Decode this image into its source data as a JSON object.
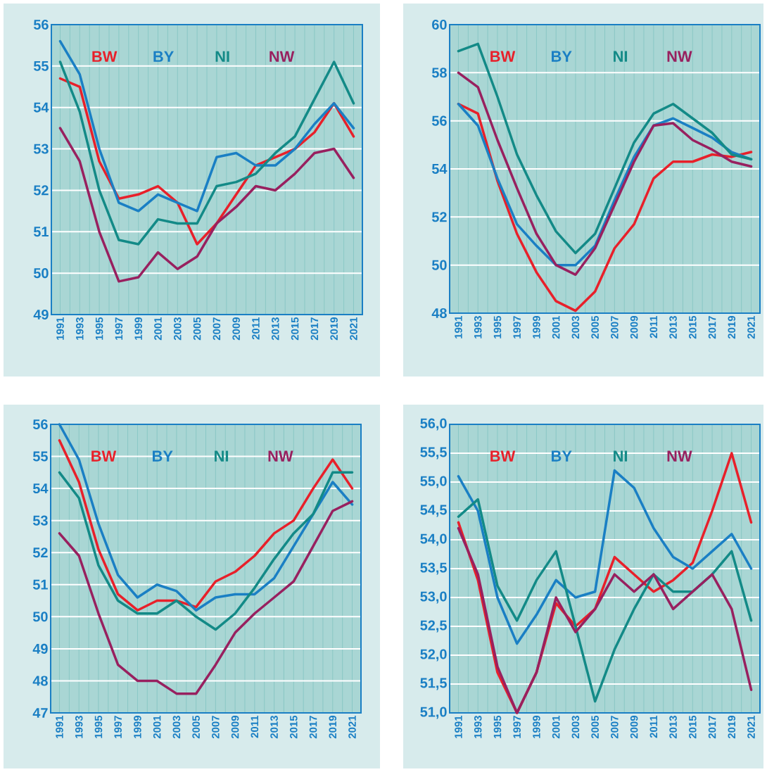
{
  "chart_data": [
    {
      "type": "line",
      "categories": [
        "1991",
        "1993",
        "1995",
        "1997",
        "1999",
        "2001",
        "2003",
        "2005",
        "2007",
        "2009",
        "2011",
        "2013",
        "2015",
        "2017",
        "2019",
        "2021"
      ],
      "ylim": [
        49,
        56
      ],
      "yticks": [
        49,
        50,
        51,
        52,
        53,
        54,
        55,
        56
      ],
      "grid": true,
      "series": [
        {
          "name": "BW",
          "color": "#e8202a",
          "values": [
            54.7,
            54.5,
            52.7,
            51.8,
            51.9,
            52.1,
            51.7,
            50.7,
            51.2,
            51.9,
            52.6,
            52.8,
            53.0,
            53.4,
            54.1,
            53.3
          ]
        },
        {
          "name": "BY",
          "color": "#1a7fc4",
          "values": [
            55.6,
            54.8,
            53.0,
            51.7,
            51.5,
            51.9,
            51.7,
            51.5,
            52.8,
            52.9,
            52.6,
            52.6,
            53.0,
            53.6,
            54.1,
            53.5
          ]
        },
        {
          "name": "NI",
          "color": "#138a87",
          "values": [
            55.1,
            53.9,
            52.0,
            50.8,
            50.7,
            51.3,
            51.2,
            51.2,
            52.1,
            52.2,
            52.4,
            52.9,
            53.3,
            54.2,
            55.1,
            54.1
          ]
        },
        {
          "name": "NW",
          "color": "#98205f",
          "values": [
            53.5,
            52.7,
            51.0,
            49.8,
            49.9,
            50.5,
            50.1,
            50.4,
            51.2,
            51.6,
            52.1,
            52.0,
            52.4,
            52.9,
            53.0,
            52.3
          ]
        }
      ]
    },
    {
      "type": "line",
      "categories": [
        "1991",
        "1993",
        "1995",
        "1997",
        "1999",
        "2001",
        "2003",
        "2005",
        "2007",
        "2009",
        "2011",
        "2013",
        "2015",
        "2017",
        "2019",
        "2021"
      ],
      "ylim": [
        48,
        60
      ],
      "yticks": [
        48,
        50,
        52,
        54,
        56,
        58,
        60
      ],
      "grid": true,
      "series": [
        {
          "name": "BW",
          "color": "#e8202a",
          "values": [
            56.7,
            56.3,
            53.5,
            51.3,
            49.7,
            48.5,
            48.1,
            48.9,
            50.7,
            51.7,
            53.6,
            54.3,
            54.3,
            54.6,
            54.5,
            54.7
          ]
        },
        {
          "name": "BY",
          "color": "#1a7fc4",
          "values": [
            56.7,
            55.8,
            53.6,
            51.7,
            50.8,
            50.0,
            50.0,
            50.8,
            52.7,
            54.5,
            55.8,
            56.1,
            55.7,
            55.3,
            54.7,
            54.4
          ]
        },
        {
          "name": "NI",
          "color": "#138a87",
          "values": [
            58.9,
            59.2,
            57.0,
            54.6,
            52.9,
            51.4,
            50.5,
            51.3,
            53.2,
            55.1,
            56.3,
            56.7,
            56.1,
            55.5,
            54.6,
            54.4
          ]
        },
        {
          "name": "NW",
          "color": "#98205f",
          "values": [
            58.0,
            57.4,
            55.2,
            53.2,
            51.3,
            50.0,
            49.6,
            50.7,
            52.5,
            54.3,
            55.8,
            55.9,
            55.2,
            54.8,
            54.3,
            54.1
          ]
        }
      ]
    },
    {
      "type": "line",
      "categories": [
        "1991",
        "1993",
        "1995",
        "1997",
        "1999",
        "2001",
        "2003",
        "2005",
        "2007",
        "2009",
        "2011",
        "2013",
        "2015",
        "2017",
        "2019",
        "2021"
      ],
      "ylim": [
        47,
        56
      ],
      "yticks": [
        47,
        48,
        49,
        50,
        51,
        52,
        53,
        54,
        55,
        56
      ],
      "grid": true,
      "series": [
        {
          "name": "BW",
          "color": "#e8202a",
          "values": [
            55.5,
            54.2,
            52.1,
            50.7,
            50.2,
            50.5,
            50.5,
            50.3,
            51.1,
            51.4,
            51.9,
            52.6,
            53.0,
            54.0,
            54.9,
            54.0
          ]
        },
        {
          "name": "BY",
          "color": "#1a7fc4",
          "values": [
            56.0,
            54.9,
            52.9,
            51.3,
            50.6,
            51.0,
            50.8,
            50.2,
            50.6,
            50.7,
            50.7,
            51.2,
            52.2,
            53.2,
            54.2,
            53.5
          ]
        },
        {
          "name": "NI",
          "color": "#138a87",
          "values": [
            54.5,
            53.7,
            51.6,
            50.5,
            50.1,
            50.1,
            50.5,
            50.0,
            49.6,
            50.1,
            50.9,
            51.8,
            52.6,
            53.2,
            54.5,
            54.5
          ]
        },
        {
          "name": "NW",
          "color": "#98205f",
          "values": [
            52.6,
            51.9,
            50.1,
            48.5,
            48.0,
            48.0,
            47.6,
            47.6,
            48.5,
            49.5,
            50.1,
            50.6,
            51.1,
            52.2,
            53.3,
            53.6
          ]
        }
      ]
    },
    {
      "type": "line",
      "categories": [
        "1991",
        "1993",
        "1995",
        "1997",
        "1999",
        "2001",
        "2003",
        "2005",
        "2007",
        "2009",
        "2011",
        "2013",
        "2015",
        "2017",
        "2019",
        "2021"
      ],
      "ylim": [
        51,
        56
      ],
      "yticks": [
        {
          "value": 51,
          "label": "51,0"
        },
        {
          "value": 51.5,
          "label": "51,5"
        },
        {
          "value": 52,
          "label": "52,0"
        },
        {
          "value": 52.5,
          "label": "52,5"
        },
        {
          "value": 53,
          "label": "53,0"
        },
        {
          "value": 53.5,
          "label": "53,5"
        },
        {
          "value": 54,
          "label": "54,0"
        },
        {
          "value": 54.5,
          "label": "54,5"
        },
        {
          "value": 55,
          "label": "55,0"
        },
        {
          "value": 55.5,
          "label": "55,5"
        },
        {
          "value": 56,
          "label": "56,0"
        }
      ],
      "grid": true,
      "series": [
        {
          "name": "BW",
          "color": "#e8202a",
          "values": [
            54.3,
            53.3,
            51.7,
            51.0,
            51.7,
            52.9,
            52.5,
            52.8,
            53.7,
            53.4,
            53.1,
            53.3,
            53.6,
            54.5,
            55.5,
            54.3
          ]
        },
        {
          "name": "BY",
          "color": "#1a7fc4",
          "values": [
            55.1,
            54.5,
            53.0,
            52.2,
            52.7,
            53.3,
            53.0,
            53.1,
            55.2,
            54.9,
            54.2,
            53.7,
            53.5,
            53.8,
            54.1,
            53.5
          ]
        },
        {
          "name": "NI",
          "color": "#138a87",
          "values": [
            54.4,
            54.7,
            53.2,
            52.6,
            53.3,
            53.8,
            52.5,
            51.2,
            52.1,
            52.8,
            53.4,
            53.1,
            53.1,
            53.4,
            53.8,
            52.6
          ]
        },
        {
          "name": "NW",
          "color": "#98205f",
          "values": [
            54.2,
            53.4,
            51.8,
            51.0,
            51.7,
            53.0,
            52.4,
            52.8,
            53.4,
            53.1,
            53.4,
            52.8,
            53.1,
            53.4,
            52.8,
            51.4
          ]
        }
      ]
    }
  ]
}
